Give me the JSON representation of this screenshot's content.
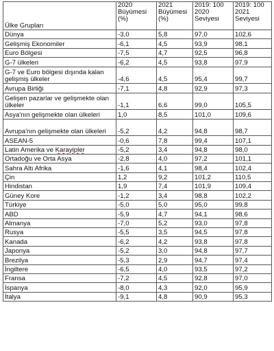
{
  "table": {
    "headers": [
      "Ülke Grupları",
      "2020 Büyümesi (%)",
      "2021 Büyümesi (%)",
      "2019: 100 2020 Seviyesi",
      "2019: 100 2021 Seviyesi"
    ],
    "rows": [
      [
        "Dünya",
        "-3,0",
        "5,8",
        "97,0",
        "102,6"
      ],
      [
        "Gelişmiş Ekonomiler",
        "-6,1",
        "4,5",
        "93,9",
        "98,1"
      ],
      [
        "Euro Bölgesi",
        "-7,5",
        "4,7",
        "92,5",
        "96,8"
      ],
      [
        "G-7 ülkeleri",
        "-6,2",
        "4,5",
        "93,8",
        "97,9"
      ],
      [
        "G-7 ve Euro bölgesi dışında kalan gelişmiş ülkeler",
        "-4,6",
        "4,5",
        "95,4",
        "99,7"
      ],
      [
        "Avrupa Birliği",
        "-7,1",
        "4,8",
        "92,9",
        "97,3"
      ],
      [
        "Gelişen pazarlar ve gelişmekte olan ülkeler",
        "-1,1",
        "6,6",
        "99,0",
        "105,5"
      ],
      [
        "Asya'nın gelişmekte olan ülkeleri",
        "1,0",
        "8,5",
        "101,0",
        "109,6"
      ],
      [
        "Avrupa'nın gelişmekte olan ülkeleri",
        "-5,2",
        "4,2",
        "94,8",
        "98,7"
      ],
      [
        "ASEAN-5",
        "-0,6",
        "7,8",
        "99,4",
        "107,1"
      ],
      [
        "Latin Amerika ve Karayipler",
        "-5,2",
        "3,4",
        "94,8",
        "98,0"
      ],
      [
        "Ortadoğu ve Orta Asya",
        "-2,8",
        "4,0",
        "97,2",
        "101,1"
      ],
      [
        "Sahra Altı Afrika",
        "-1,6",
        "4,1",
        "98,4",
        "102,4"
      ],
      [
        "Çin",
        "1,2",
        "9,2",
        "101,2",
        "110,5"
      ],
      [
        "Hindistan",
        "1,9",
        "7,4",
        "101,9",
        "109,4"
      ],
      [
        "Güney Kore",
        "-1,2",
        "3,4",
        "98,8",
        "102,2"
      ],
      [
        "Türkiye",
        "-5,0",
        "5,0",
        "95,0",
        "99,8"
      ],
      [
        "ABD",
        "-5,9",
        "4,7",
        "94,1",
        "98,6"
      ],
      [
        "Almanya",
        "-7,0",
        "5,2",
        "93,0",
        "97,8"
      ],
      [
        "Rusya",
        "-5,5",
        "3,5",
        "94,5",
        "97,8"
      ],
      [
        "Kanada",
        "-6,2",
        "4,2",
        "93,8",
        "97,8"
      ],
      [
        "Japonya",
        "-5,2",
        "3,0",
        "94,8",
        "97,7"
      ],
      [
        "Brezilya",
        "-5,3",
        "2,9",
        "94,7",
        "97,4"
      ],
      [
        "İngiltere",
        "-6,5",
        "4,0",
        "93,5",
        "97,2"
      ],
      [
        "Fransa",
        "-7,2",
        "4,5",
        "92,8",
        "97,0"
      ],
      [
        "İspanya",
        "-8,0",
        "4,3",
        "92,0",
        "95,9"
      ],
      [
        "İtalya",
        "-9,1",
        "4,8",
        "90,9",
        "95,3"
      ]
    ]
  }
}
